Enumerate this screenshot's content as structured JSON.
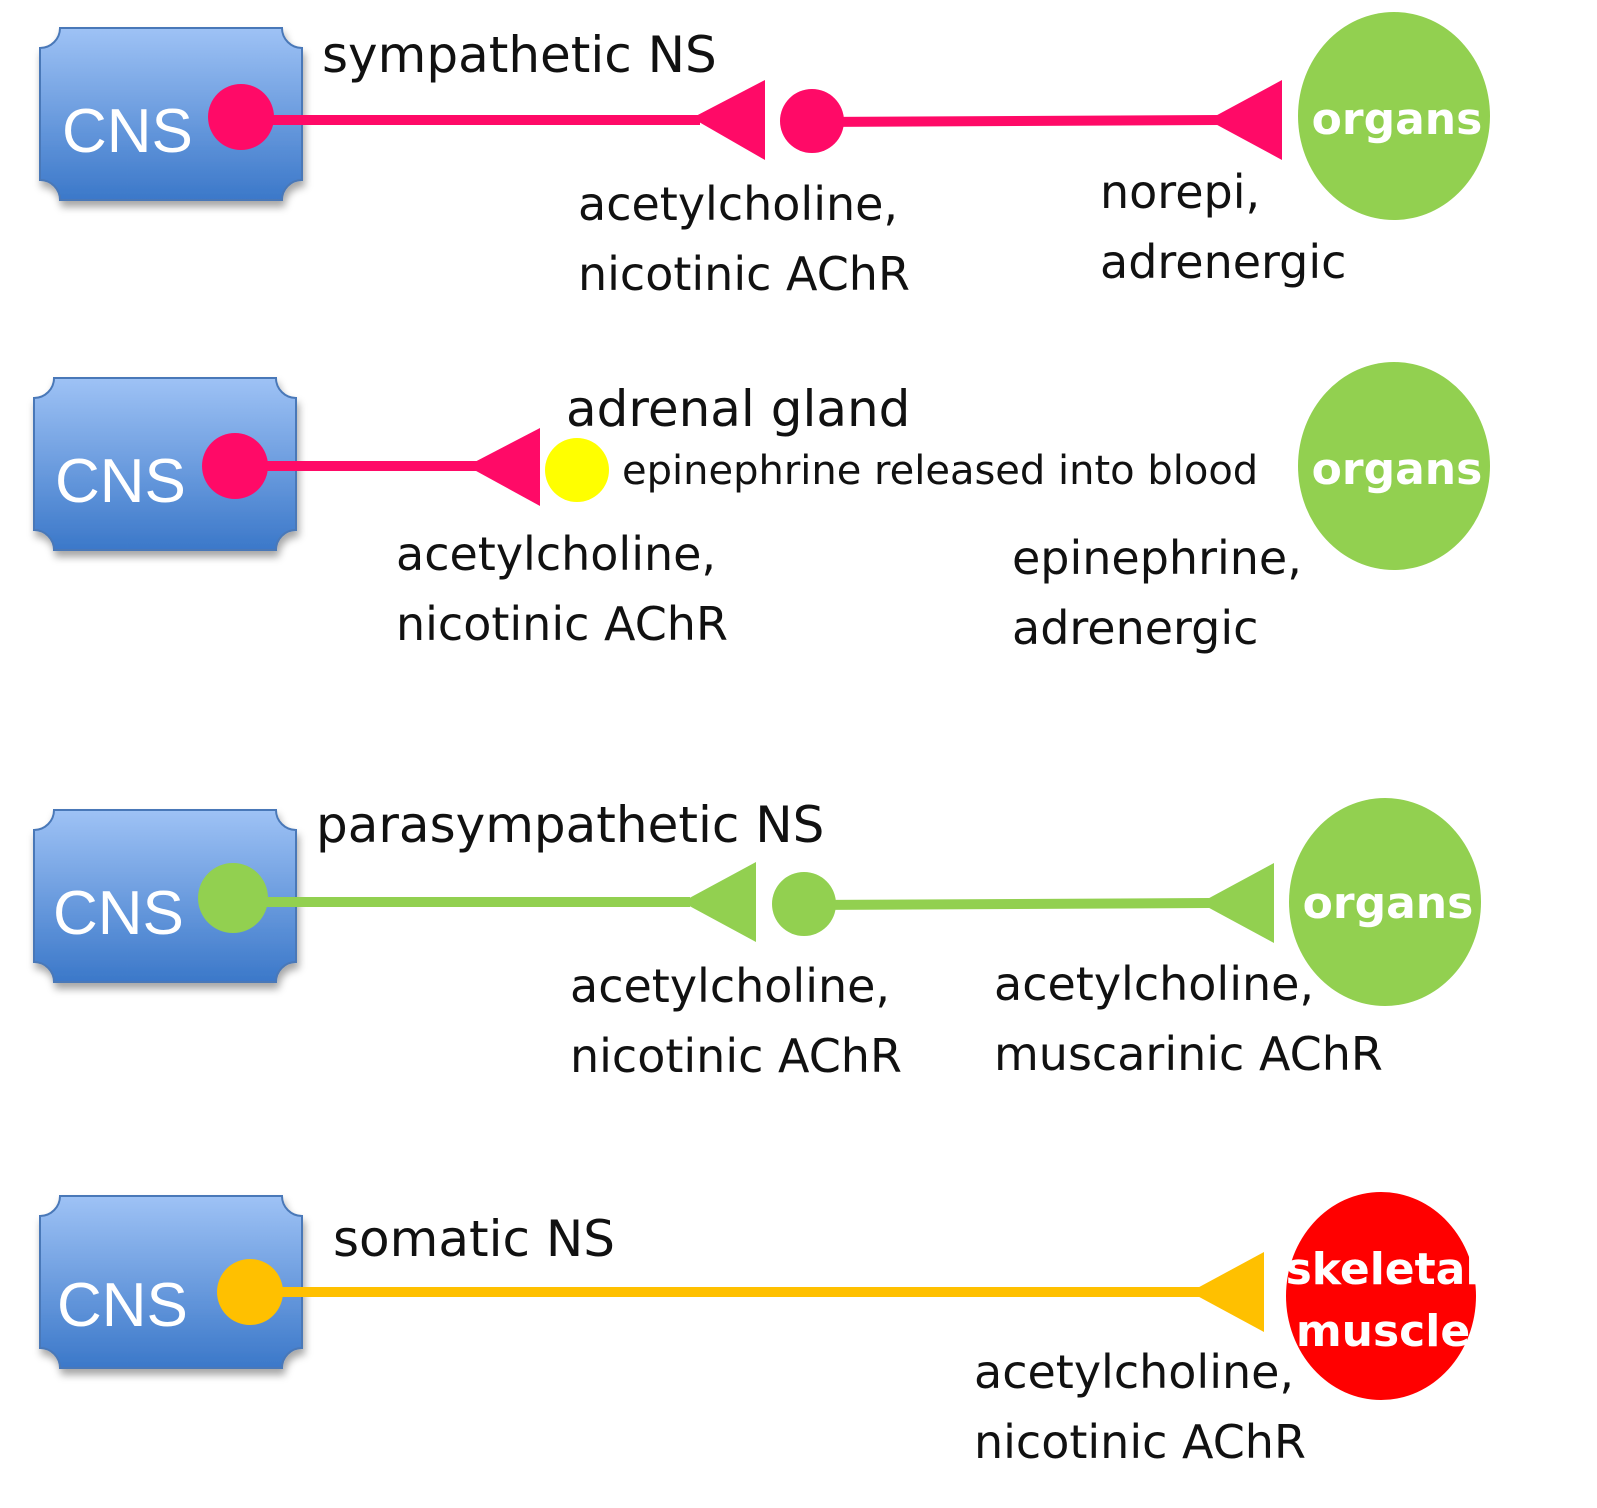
{
  "colors": {
    "cns_fill_top": "#9ec2f5",
    "cns_fill_bottom": "#3b78c9",
    "cns_stroke": "#4a78b8",
    "sympathetic": "#ff0a67",
    "parasympathetic": "#92d050",
    "somatic": "#ffc000",
    "adrenal": "#ffff00",
    "organs": "#92d050",
    "skeletal_muscle": "#ff0000"
  },
  "rows": [
    {
      "title": "sympathetic NS",
      "cns_label": "CNS",
      "target_lines": [
        "organs"
      ],
      "synapse1_text": [
        "acetylcholine,",
        "nicotinic AChR"
      ],
      "synapse2_text": [
        "norepi,",
        "adrenergic"
      ]
    },
    {
      "title": "adrenal gland",
      "cns_label": "CNS",
      "target_lines": [
        "organs"
      ],
      "release_text": "epinephrine released into blood",
      "synapse1_text": [
        "acetylcholine,",
        "nicotinic AChR"
      ],
      "synapse2_text": [
        "epinephrine,",
        "adrenergic"
      ]
    },
    {
      "title": "parasympathetic NS",
      "cns_label": "CNS",
      "target_lines": [
        "organs"
      ],
      "synapse1_text": [
        "acetylcholine,",
        "nicotinic AChR"
      ],
      "synapse2_text": [
        "acetylcholine,",
        "muscarinic AChR"
      ]
    },
    {
      "title": "somatic NS",
      "cns_label": "CNS",
      "target_lines": [
        "skeletal",
        "muscle"
      ],
      "synapse1_text": [
        "acetylcholine,",
        "nicotinic AChR"
      ]
    }
  ]
}
